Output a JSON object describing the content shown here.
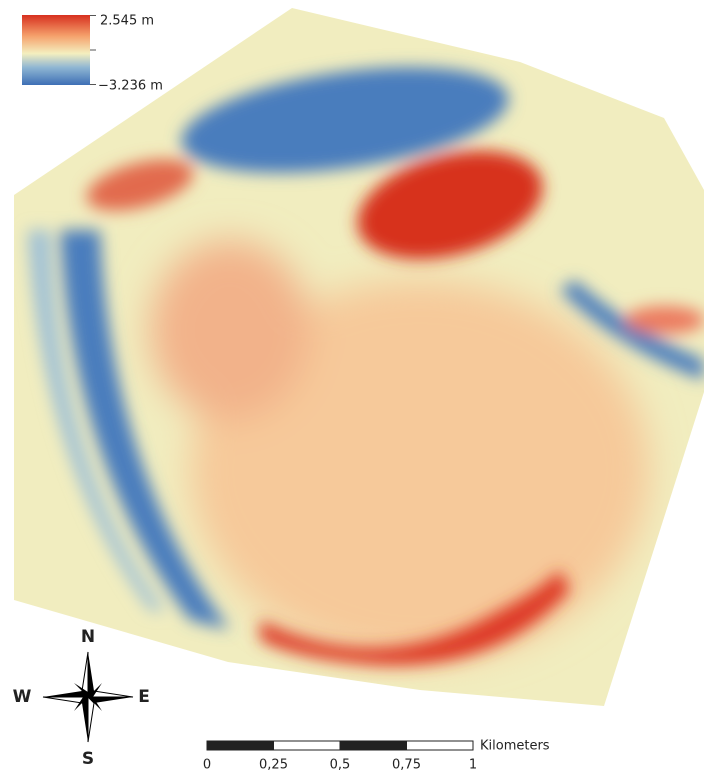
{
  "legend": {
    "max_label": "2.545 m",
    "min_label": "−3.236 m"
  },
  "compass": {
    "north": "N",
    "south": "S",
    "west": "W",
    "east": "E"
  },
  "scale_bar": {
    "unit": "Kilometers",
    "ticks": [
      0,
      {
        "value": 0.25,
        "label": "0,25"
      },
      {
        "value": 0.5,
        "label": "0,5"
      },
      {
        "value": 0.75,
        "label": "0,75"
      },
      1
    ]
  }
}
